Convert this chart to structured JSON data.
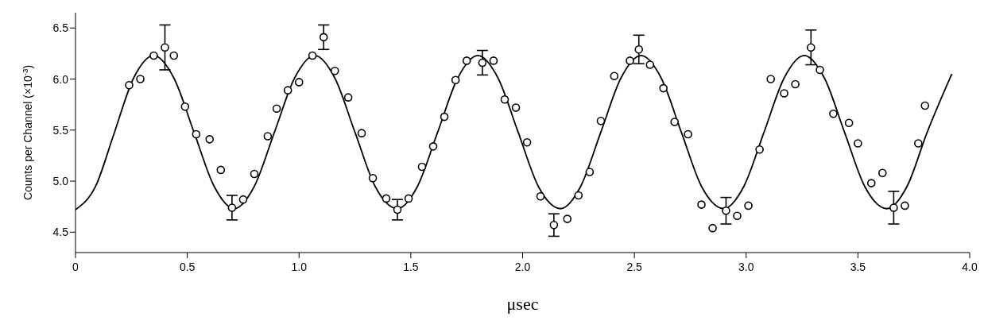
{
  "chart_data": {
    "type": "scatter",
    "xlabel": "μsec",
    "ylabel": "Counts per Channel (×10$^{-3}$)",
    "xlim": [
      0,
      4
    ],
    "ylim": [
      4.3,
      6.65
    ],
    "xticks": [
      0,
      0.5,
      {
        "value": 1,
        "label": "1.0"
      },
      1.5,
      {
        "value": 2,
        "label": "2.0"
      },
      2.5,
      {
        "value": 3,
        "label": "3.0"
      },
      3.5,
      {
        "value": 4,
        "label": "4.0"
      }
    ],
    "yticks": [
      4.5,
      {
        "value": 5,
        "label": "5.0"
      },
      5.5,
      {
        "value": 6,
        "label": "6.0"
      },
      6.5
    ],
    "grid": false,
    "series": [
      {
        "color": "#000000",
        "marker": "circle",
        "x": [
          0.24,
          0.29,
          0.35,
          0.4,
          0.44,
          0.49,
          0.54,
          0.6,
          0.65,
          0.7,
          0.75,
          0.8,
          0.86,
          0.9,
          0.95,
          1.0,
          1.06,
          1.11,
          1.16,
          1.22,
          1.28,
          1.33,
          1.39,
          1.44,
          1.49,
          1.55,
          1.6,
          1.65,
          1.7,
          1.75,
          1.82,
          1.87,
          1.92,
          1.97,
          2.02,
          2.08,
          2.14,
          2.2,
          2.25,
          2.3,
          2.35,
          2.41,
          2.48,
          2.52,
          2.57,
          2.63,
          2.68,
          2.74,
          2.8,
          2.85,
          2.91,
          2.96,
          3.01,
          3.06,
          3.11,
          3.17,
          3.22,
          3.29,
          3.33,
          3.39,
          3.46,
          3.5,
          3.56,
          3.61,
          3.66,
          3.71,
          3.77,
          3.8
        ],
        "values": [
          5.94,
          6.0,
          6.23,
          6.31,
          6.23,
          5.73,
          5.46,
          5.41,
          5.11,
          4.74,
          4.82,
          5.07,
          5.44,
          5.71,
          5.89,
          5.97,
          6.23,
          6.41,
          6.08,
          5.82,
          5.47,
          5.03,
          4.83,
          4.72,
          4.83,
          5.14,
          5.34,
          5.63,
          5.99,
          6.18,
          6.16,
          6.18,
          5.8,
          5.72,
          5.38,
          4.85,
          4.57,
          4.63,
          4.86,
          5.09,
          5.59,
          6.03,
          6.18,
          6.29,
          6.14,
          5.91,
          5.58,
          5.46,
          4.77,
          4.54,
          4.71,
          4.66,
          4.76,
          5.31,
          6.0,
          5.86,
          5.95,
          6.31,
          6.09,
          5.66,
          5.57,
          5.37,
          4.98,
          5.08,
          4.74,
          4.76,
          5.37,
          5.74
        ],
        "errors": [
          null,
          null,
          null,
          0.22,
          null,
          null,
          null,
          null,
          null,
          0.12,
          null,
          null,
          null,
          null,
          null,
          null,
          null,
          0.12,
          null,
          null,
          null,
          null,
          null,
          0.1,
          null,
          null,
          null,
          null,
          null,
          null,
          0.12,
          null,
          null,
          null,
          null,
          null,
          0.11,
          null,
          null,
          null,
          null,
          null,
          null,
          0.14,
          null,
          null,
          null,
          null,
          null,
          null,
          0.13,
          null,
          null,
          null,
          null,
          null,
          null,
          0.17,
          null,
          null,
          null,
          null,
          null,
          null,
          0.16,
          null,
          null,
          null
        ]
      },
      {
        "type": "line",
        "color": "#000000",
        "x": [
          0,
          0.09,
          0.17,
          0.26,
          0.35,
          0.44,
          0.53,
          0.62,
          0.71,
          0.8,
          0.89,
          0.98,
          1.07,
          1.16,
          1.25,
          1.34,
          1.44,
          1.53,
          1.62,
          1.71,
          1.8,
          1.89,
          1.98,
          2.07,
          2.17,
          2.26,
          2.35,
          2.44,
          2.53,
          2.62,
          2.71,
          2.8,
          2.9,
          2.99,
          3.08,
          3.17,
          3.26,
          3.35,
          3.44,
          3.53,
          3.63,
          3.72,
          3.81,
          3.92
        ],
        "values": [
          4.72,
          4.95,
          5.45,
          6.01,
          6.23,
          6.01,
          5.48,
          4.95,
          4.73,
          4.95,
          5.48,
          6.01,
          6.23,
          6.01,
          5.48,
          4.95,
          4.73,
          4.95,
          5.48,
          6.01,
          6.23,
          6.01,
          5.48,
          4.95,
          4.73,
          4.95,
          5.48,
          6.01,
          6.23,
          6.01,
          5.48,
          4.95,
          4.73,
          4.95,
          5.48,
          6.01,
          6.23,
          6.01,
          5.48,
          4.95,
          4.73,
          4.95,
          5.48,
          6.05
        ]
      }
    ]
  }
}
